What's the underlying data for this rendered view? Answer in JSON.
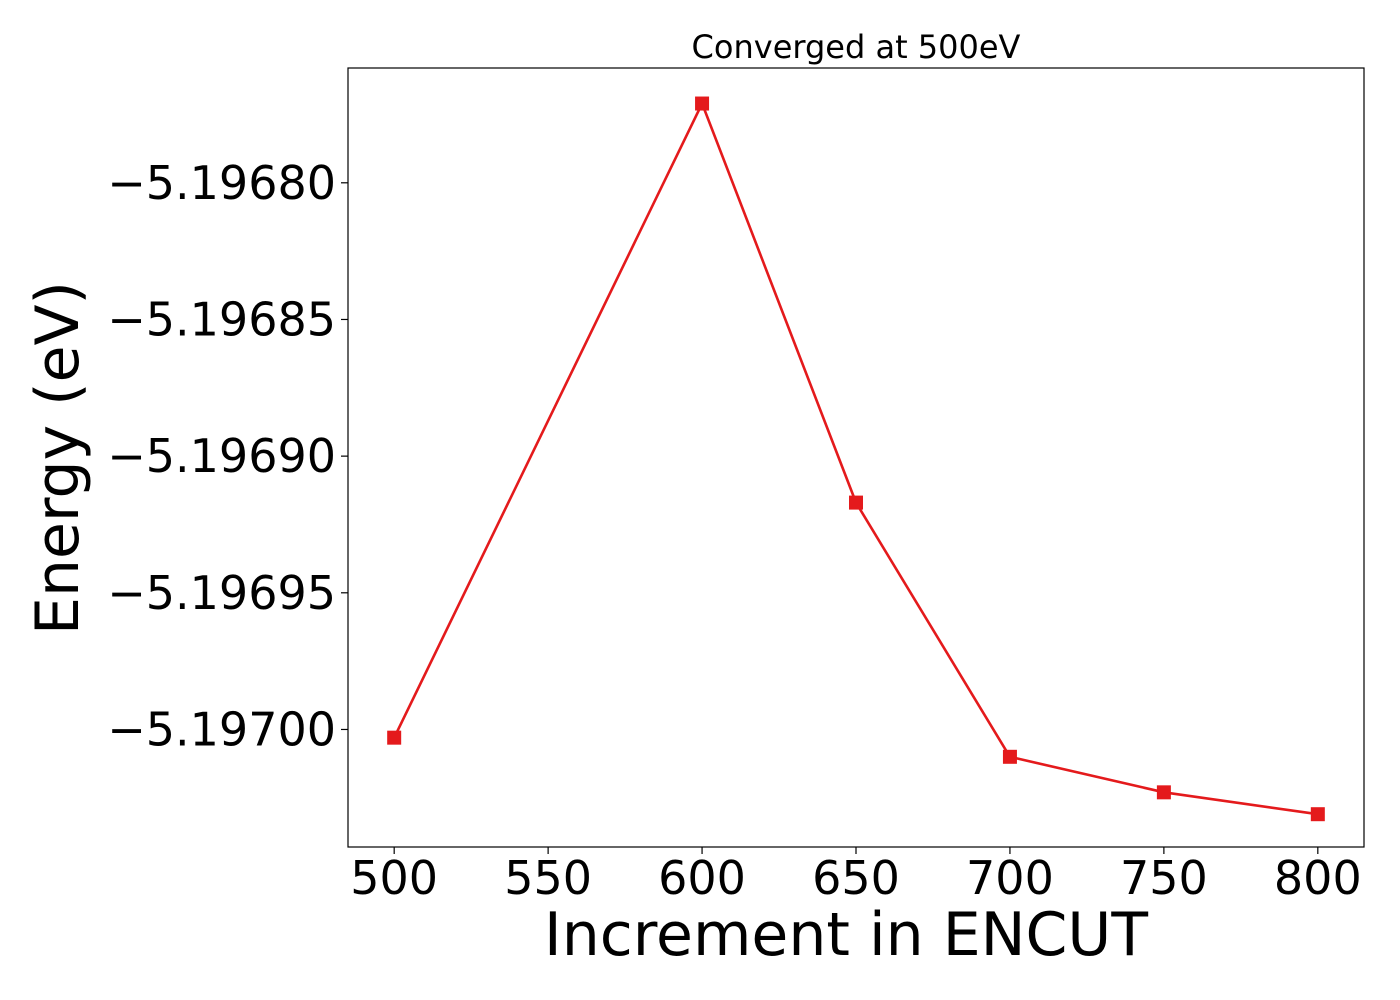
{
  "chart_data": {
    "type": "line",
    "title": "Converged at 500eV",
    "xlabel": "Increment in ENCUT",
    "ylabel": "Energy (eV)",
    "xlim": [
      485,
      815
    ],
    "ylim": [
      -5.197043,
      -5.196758
    ],
    "xticks": [
      500,
      550,
      600,
      650,
      700,
      750,
      800
    ],
    "yticks": [
      -5.1968,
      -5.19685,
      -5.1969,
      -5.19695,
      -5.197
    ],
    "ytick_labels": [
      "−5.19680",
      "−5.19685",
      "−5.19690",
      "−5.19695",
      "−5.19700"
    ],
    "grid": false,
    "series": [
      {
        "color": "#e41a1c",
        "marker": "square",
        "x": [
          500,
          600,
          650,
          700,
          750,
          800
        ],
        "y": [
          -5.197003,
          -5.196771,
          -5.196917,
          -5.19701,
          -5.197023,
          -5.197031
        ]
      }
    ]
  }
}
